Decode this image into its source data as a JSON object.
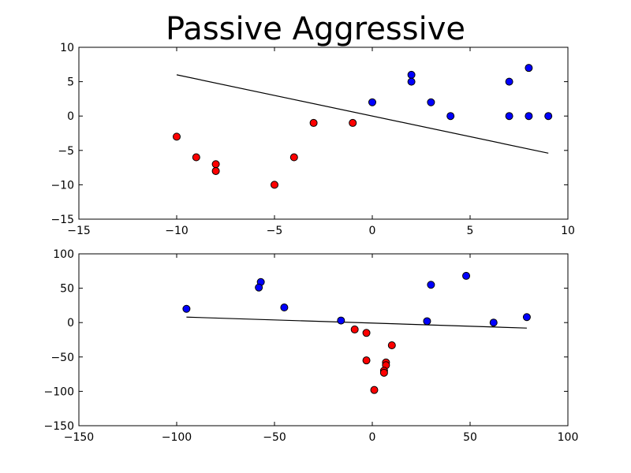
{
  "title": "Passive Aggressive",
  "chart_data": [
    {
      "type": "scatter",
      "title": "Passive Aggressive",
      "xlim": [
        -15,
        10
      ],
      "ylim": [
        -15,
        10
      ],
      "xticks": [
        -15,
        -10,
        -5,
        0,
        5,
        10
      ],
      "yticks": [
        -15,
        -10,
        -5,
        0,
        5,
        10
      ],
      "grid": false,
      "series": [
        {
          "color": "#0000ff",
          "points": [
            [
              0,
              2
            ],
            [
              2,
              6
            ],
            [
              2,
              5
            ],
            [
              3,
              2
            ],
            [
              4,
              0
            ],
            [
              7,
              5
            ],
            [
              7,
              0
            ],
            [
              8,
              7
            ],
            [
              8,
              0
            ],
            [
              9,
              0
            ]
          ]
        },
        {
          "color": "#ff0000",
          "points": [
            [
              -10,
              -3
            ],
            [
              -9,
              -6
            ],
            [
              -8,
              -7
            ],
            [
              -8,
              -8
            ],
            [
              -5,
              -10
            ],
            [
              -4,
              -6
            ],
            [
              -3,
              -1
            ],
            [
              -1,
              -1
            ]
          ]
        }
      ],
      "line": {
        "color": "#000000",
        "points": [
          [
            -10,
            6
          ],
          [
            9,
            -5.4
          ]
        ]
      }
    },
    {
      "type": "scatter",
      "xlim": [
        -150,
        100
      ],
      "ylim": [
        -150,
        100
      ],
      "xticks": [
        -150,
        -100,
        -50,
        0,
        50,
        100
      ],
      "yticks": [
        -150,
        -100,
        -50,
        0,
        50,
        100
      ],
      "grid": false,
      "series": [
        {
          "color": "#0000ff",
          "points": [
            [
              -95,
              20
            ],
            [
              -57,
              59
            ],
            [
              -58,
              51
            ],
            [
              -45,
              22
            ],
            [
              -16,
              3
            ],
            [
              28,
              2
            ],
            [
              30,
              55
            ],
            [
              48,
              68
            ],
            [
              62,
              0
            ],
            [
              79,
              8
            ]
          ]
        },
        {
          "color": "#ff0000",
          "points": [
            [
              -9,
              -10
            ],
            [
              -3,
              -15
            ],
            [
              -3,
              -55
            ],
            [
              10,
              -33
            ],
            [
              7,
              -58
            ],
            [
              7,
              -62
            ],
            [
              6,
              -70
            ],
            [
              6,
              -73
            ],
            [
              1,
              -98
            ]
          ]
        }
      ],
      "line": {
        "color": "#000000",
        "points": [
          [
            -95,
            8
          ],
          [
            79,
            -8
          ]
        ]
      }
    }
  ]
}
